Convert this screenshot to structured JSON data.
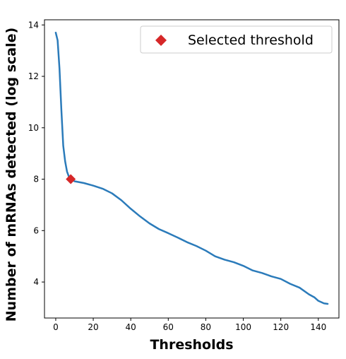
{
  "chart_data": {
    "type": "line",
    "title": "",
    "xlabel": "Thresholds",
    "ylabel": "Number of mRNAs detected (log scale)",
    "xlim": [
      -6,
      151
    ],
    "ylim": [
      2.6,
      14.2
    ],
    "xticks": [
      0,
      20,
      40,
      60,
      80,
      100,
      120,
      140
    ],
    "yticks": [
      4,
      6,
      8,
      10,
      12,
      14
    ],
    "grid": false,
    "legend": {
      "placement": "top-right",
      "entries": [
        "Selected threshold"
      ]
    },
    "colors": {
      "line": "#2b7bba",
      "marker": "#d62728"
    },
    "series": [
      {
        "name": "",
        "x": [
          0,
          1,
          2,
          3,
          4,
          5,
          6,
          7,
          8,
          10,
          15,
          20,
          25,
          30,
          35,
          40,
          45,
          50,
          55,
          60,
          65,
          70,
          75,
          80,
          85,
          90,
          95,
          100,
          105,
          110,
          115,
          120,
          125,
          130,
          135,
          138,
          140,
          143,
          145
        ],
        "y": [
          13.7,
          13.4,
          12.3,
          10.7,
          9.3,
          8.7,
          8.3,
          8.1,
          8.0,
          7.92,
          7.85,
          7.75,
          7.63,
          7.45,
          7.18,
          6.85,
          6.55,
          6.28,
          6.06,
          5.9,
          5.73,
          5.55,
          5.4,
          5.22,
          5.0,
          4.87,
          4.77,
          4.63,
          4.45,
          4.35,
          4.22,
          4.12,
          3.93,
          3.78,
          3.52,
          3.4,
          3.27,
          3.17,
          3.15
        ]
      }
    ],
    "highlight": {
      "name": "Selected threshold",
      "x": 8,
      "y": 8.0
    }
  }
}
